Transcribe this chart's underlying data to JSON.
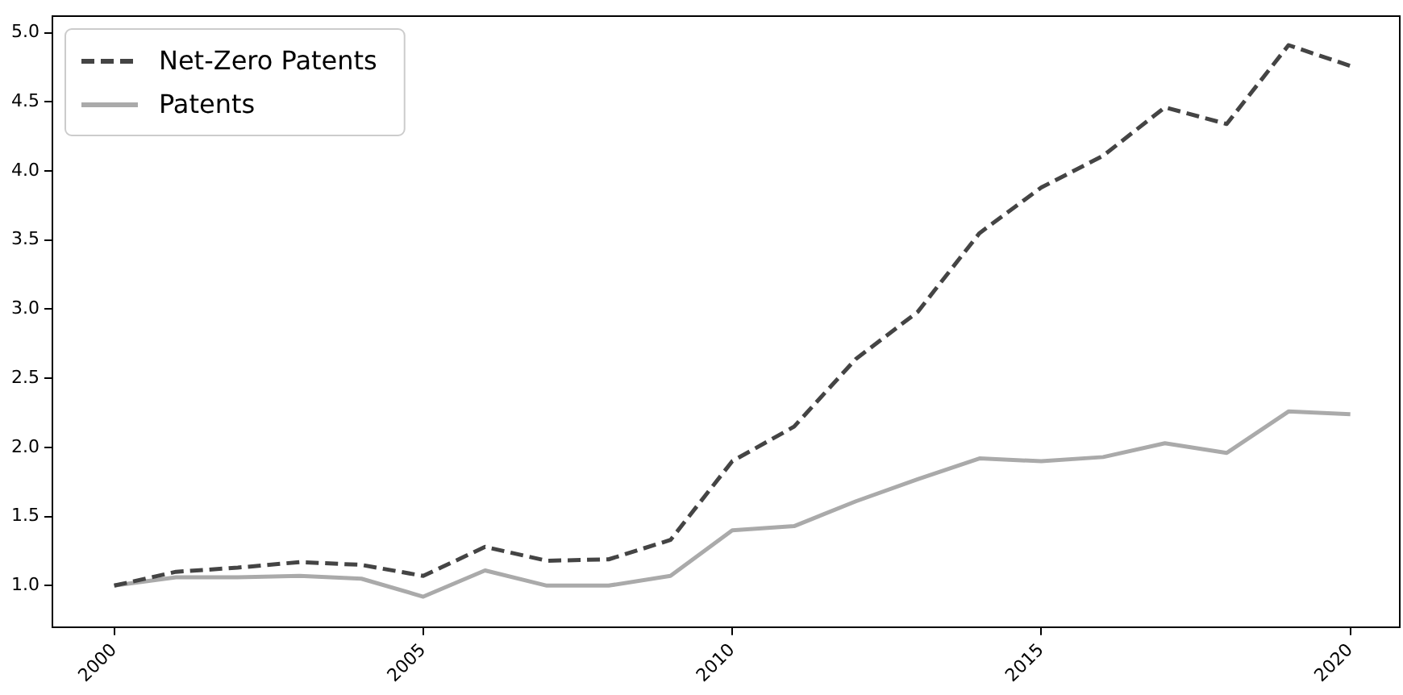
{
  "chart_data": {
    "type": "line",
    "x": [
      2000,
      2001,
      2002,
      2003,
      2004,
      2005,
      2006,
      2007,
      2008,
      2009,
      2010,
      2011,
      2012,
      2013,
      2014,
      2015,
      2016,
      2017,
      2018,
      2019,
      2020
    ],
    "series": [
      {
        "name": "Net-Zero Patents",
        "color": "#444444",
        "line_style": "dashed",
        "values": [
          1.0,
          1.1,
          1.13,
          1.17,
          1.15,
          1.07,
          1.28,
          1.18,
          1.19,
          1.33,
          1.9,
          2.15,
          2.64,
          2.98,
          3.55,
          3.88,
          4.11,
          4.46,
          4.34,
          4.91,
          4.76
        ]
      },
      {
        "name": "Patents",
        "color": "#aaaaaa",
        "line_style": "solid",
        "values": [
          1.0,
          1.06,
          1.06,
          1.07,
          1.05,
          0.92,
          1.11,
          1.0,
          1.0,
          1.07,
          1.4,
          1.43,
          1.61,
          1.77,
          1.92,
          1.9,
          1.93,
          2.03,
          1.96,
          2.26,
          2.24
        ]
      }
    ],
    "xlim": [
      1999,
      2020.8
    ],
    "xticks": [
      2000,
      2005,
      2010,
      2015,
      2020
    ],
    "ylim": [
      0.7,
      5.12
    ],
    "yticks": [
      {
        "value": 1,
        "label": "1.0"
      },
      1.5,
      {
        "value": 2,
        "label": "2.0"
      },
      2.5,
      {
        "value": 3,
        "label": "3.0"
      },
      3.5,
      {
        "value": 4,
        "label": "4.0"
      },
      4.5,
      {
        "value": 5,
        "label": "5.0"
      }
    ],
    "grid": false,
    "legend": "top left",
    "marker": "none"
  }
}
